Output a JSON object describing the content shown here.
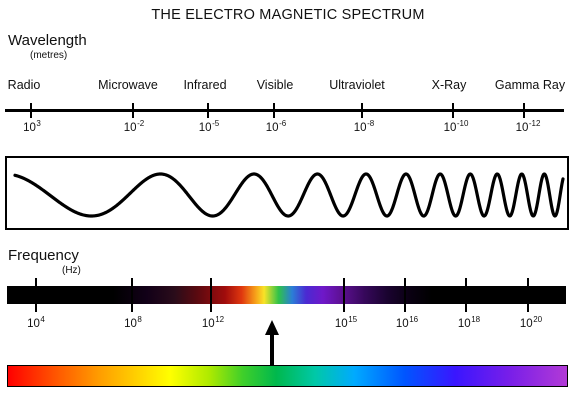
{
  "title": "THE ELECTRO MAGNETIC SPECTRUM",
  "wavelength": {
    "heading": "Wavelength",
    "unit": "(metres)",
    "bands": [
      "Radio",
      "Microwave",
      "Infrared",
      "Visible",
      "Ultraviolet",
      "X-Ray",
      "Gamma Ray"
    ],
    "ticks": [
      {
        "base": "10",
        "exp": "3"
      },
      {
        "base": "10",
        "exp": "-2"
      },
      {
        "base": "10",
        "exp": "-5"
      },
      {
        "base": "10",
        "exp": "-6"
      },
      {
        "base": "10",
        "exp": "-8"
      },
      {
        "base": "10",
        "exp": "-10"
      },
      {
        "base": "10",
        "exp": "-12"
      }
    ]
  },
  "frequency": {
    "heading": "Frequency",
    "unit": "(Hz)",
    "ticks": [
      {
        "base": "10",
        "exp": "4"
      },
      {
        "base": "10",
        "exp": "8"
      },
      {
        "base": "10",
        "exp": "12"
      },
      {
        "base": "10",
        "exp": "15"
      },
      {
        "base": "10",
        "exp": "16"
      },
      {
        "base": "10",
        "exp": "18"
      },
      {
        "base": "10",
        "exp": "20"
      }
    ]
  }
}
